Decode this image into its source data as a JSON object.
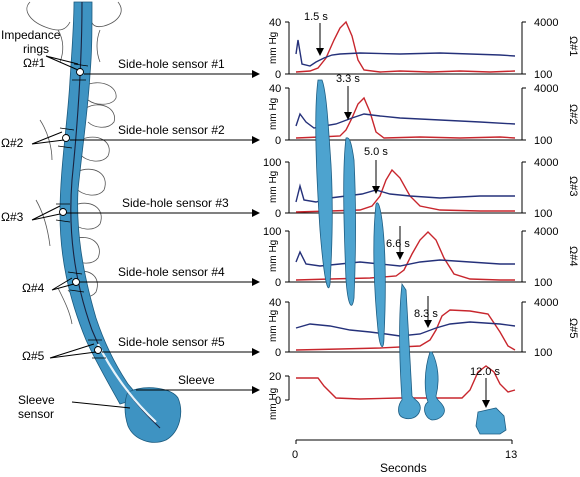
{
  "labels": {
    "impedance_rings": [
      "Impedance",
      "rings",
      "Ω#1"
    ],
    "sleeve_sensor": [
      "Sleeve",
      "sensor"
    ]
  },
  "channels": [
    {
      "sensor_label": "Side-hole sensor #1",
      "ring_label": "Ω#1",
      "right_label": "Ω#1",
      "y_unit": "mm Hg",
      "y_ticks": [
        "40",
        "0"
      ],
      "right_ticks": [
        "4000",
        "100"
      ],
      "time": "1.5 s"
    },
    {
      "sensor_label": "Side-hole sensor #2",
      "ring_label": "Ω#2",
      "right_label": "Ω#2",
      "y_unit": "mm Hg",
      "y_ticks": [
        "40",
        "0"
      ],
      "right_ticks": [
        "4000",
        "100"
      ],
      "time": "3.3 s"
    },
    {
      "sensor_label": "Side-hole sensor #3",
      "ring_label": "Ω#3",
      "right_label": "Ω#3",
      "y_unit": "mm Hg",
      "y_ticks": [
        "100",
        "0"
      ],
      "right_ticks": [
        "4000",
        "100"
      ],
      "time": "5.0 s"
    },
    {
      "sensor_label": "Side-hole sensor #4",
      "ring_label": "Ω#4",
      "right_label": "Ω#4",
      "y_unit": "mm Hg",
      "y_ticks": [
        "100",
        "0"
      ],
      "right_ticks": [
        "4000",
        "100"
      ],
      "time": "6.6 s"
    },
    {
      "sensor_label": "Side-hole sensor #5",
      "ring_label": "Ω#5",
      "right_label": "Ω#5",
      "y_unit": "mm Hg",
      "y_ticks": [
        "40",
        "0"
      ],
      "right_ticks": [
        "4000",
        "100"
      ],
      "time": "8.3 s"
    }
  ],
  "sleeve": {
    "label": "Sleeve",
    "y_unit": "mm Hg",
    "y_ticks": [
      "20",
      "0"
    ],
    "time": "12.0 s"
  },
  "x_axis": {
    "label": "Seconds",
    "ticks": [
      "0",
      "13"
    ]
  },
  "colors": {
    "pressure": "#c8262d",
    "impedance": "#25317a",
    "bolus": "#4da3cf"
  }
}
